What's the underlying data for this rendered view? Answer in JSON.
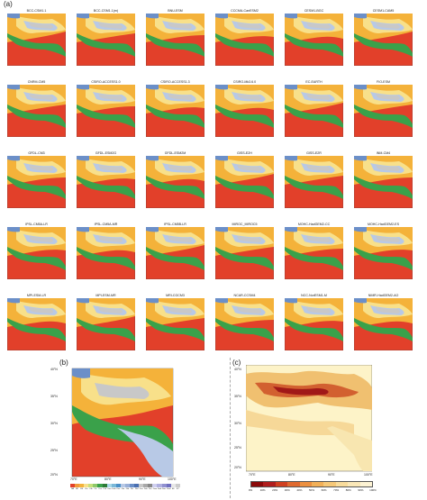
{
  "panels": {
    "a": "(a)",
    "b": "(b)",
    "c": "(c)"
  },
  "models": [
    "BCC-CSM1.1",
    "BCC-CSM1.1(m)",
    "BNU-ESM",
    "CCCMA-CanESM2",
    "CESM1-BGC",
    "CESM1-CAM5",
    "CNRM-CM5",
    "CSIRO-ACCESS1.0",
    "CSIRO-ACCESS1.3",
    "CSIRO-Mk3.6.0",
    "EC-EARTH",
    "FIO-ESM",
    "GFDL-CM3",
    "GFDL-ESM2G",
    "GFDL-ESM2M",
    "GISS-E2H",
    "GISS-E2R",
    "INM-CM4",
    "IPSL-CM5A-LR",
    "IPSL-CM5A-MR",
    "IPSL-CM5B-LR",
    "MIROC_MIROC5",
    "MOHC-HadGEM2-CC",
    "MOHC-HadGEM2-ES",
    "MPI-ESM-LR",
    "MPI-ESM-MR",
    "MRI-CGCM3",
    "NCAR-CCSM4",
    "NCC-NorESM1-M",
    "NIMR-HadGEM2-AO"
  ],
  "panel_b": {
    "lat_ticks": [
      "40°N",
      "35°N",
      "30°N",
      "25°N",
      "20°N"
    ],
    "lon_ticks": [
      "70°E",
      "80°E",
      "90°E",
      "100°E"
    ],
    "colorbar_labels": [
      "BA",
      "BF",
      "BS",
      "Cfa",
      "Cfb",
      "Cfc",
      "Csa",
      "Csb",
      "Cwa",
      "Cwb",
      "Cwc",
      "Dfa",
      "Dfb",
      "Dfc",
      "Dfd",
      "Dsa",
      "Dsb",
      "Dsc",
      "Dwa",
      "Dwb",
      "Dwc",
      "Dwd",
      "EF",
      "ET"
    ]
  },
  "panel_c": {
    "lat_ticks": [
      "40°N",
      "35°N",
      "30°N",
      "25°N",
      "20°N"
    ],
    "lon_ticks": [
      "70°E",
      "80°E",
      "90°E",
      "100°E"
    ],
    "colorbar_labels": [
      "0%",
      "10%",
      "20%",
      "30%",
      "40%",
      "50%",
      "60%",
      "70%",
      "80%",
      "90%",
      "100%"
    ]
  },
  "colors": {
    "tropical": "#e2402a",
    "arid": "#f4b23a",
    "temperate": "#3aa14a",
    "highland": "#b8c9e6",
    "polar": "#c8c8c8",
    "cold_desert": "#f8e08a"
  }
}
